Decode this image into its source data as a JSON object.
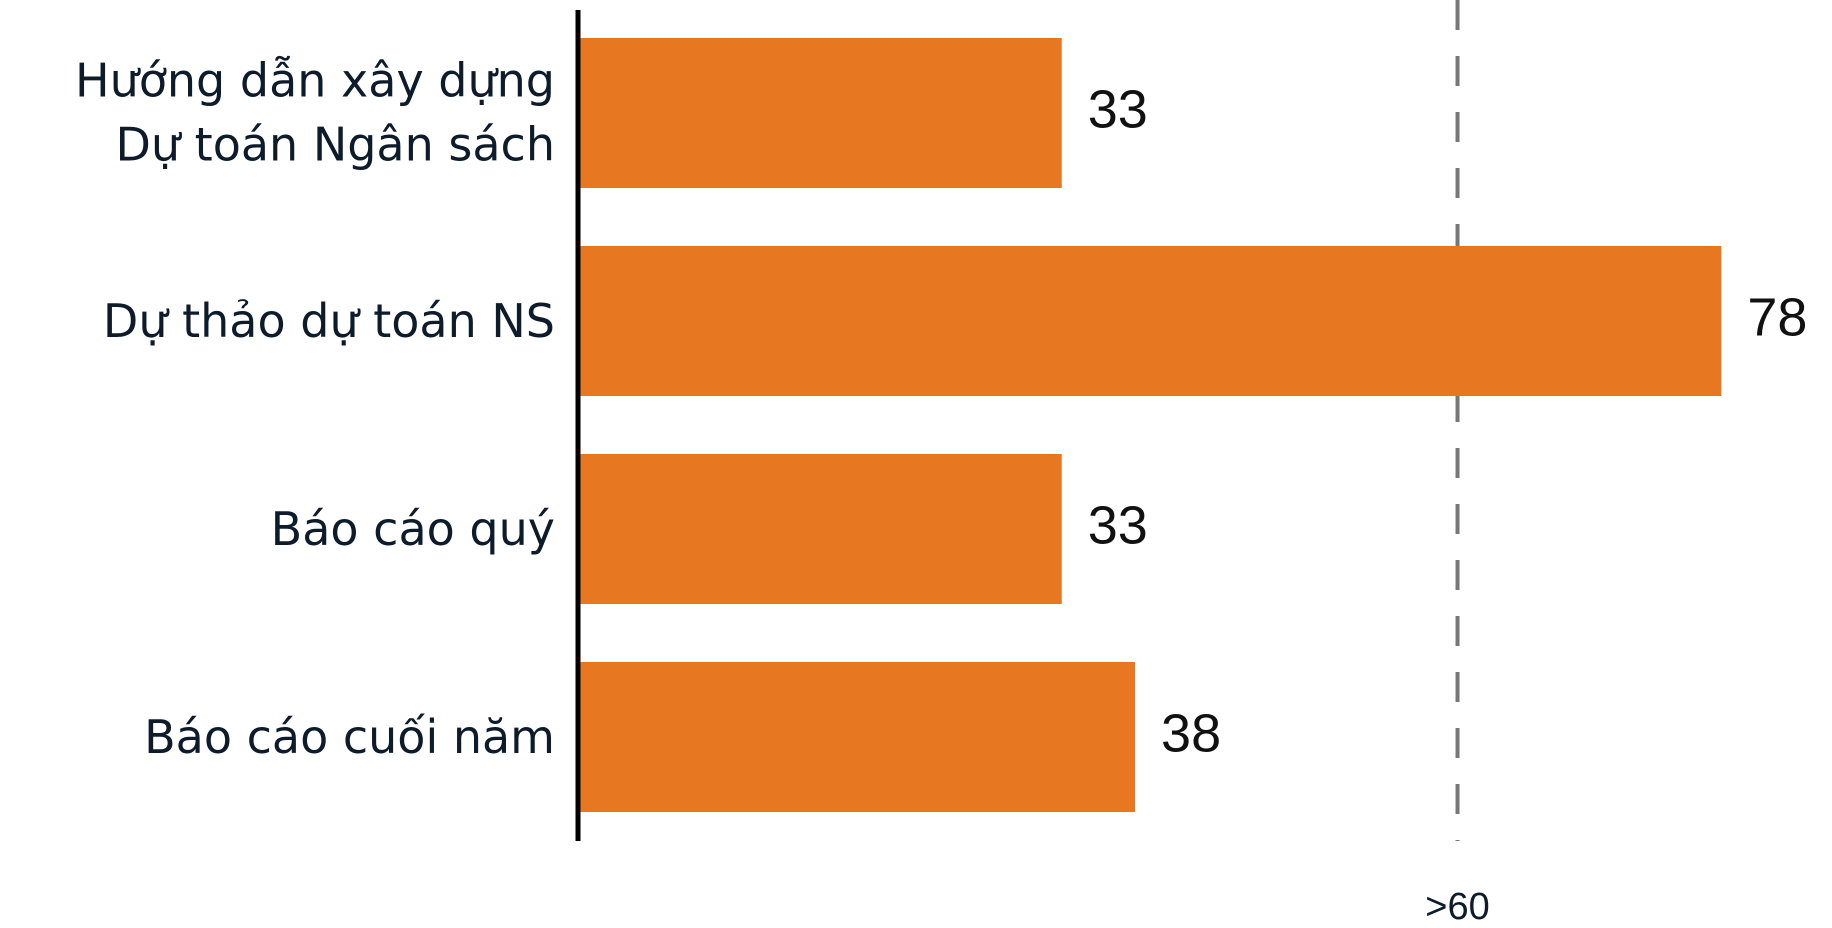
{
  "chart_data": {
    "type": "barh",
    "categories": [
      "Hướng dẫn xây dựng\nDự toán Ngân sách",
      "Dự thảo dự toán NS",
      "Báo cáo quý",
      "Báo cáo cuối năm"
    ],
    "values": [
      33,
      78,
      33,
      38
    ],
    "color": "#e87722",
    "xlim": [
      0,
      85
    ],
    "reference_line": {
      "value": 60,
      "label": ">60"
    }
  }
}
